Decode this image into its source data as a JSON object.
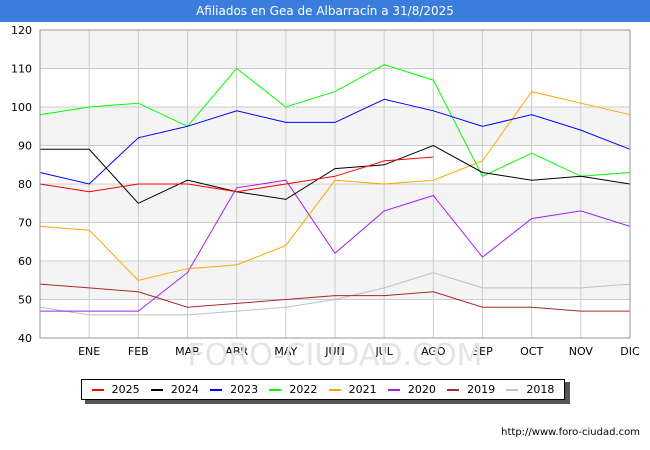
{
  "title": "Afiliados en Gea de Albarracín a 31/8/2025",
  "source": "http://www.foro-ciudad.com",
  "watermark": "FORO-CIUDAD.COM",
  "colors": {
    "title_bar": "#3b7ddd",
    "grid": "#cccccc",
    "band": "#f4f4f4"
  },
  "chart_data": {
    "type": "line",
    "title": "Afiliados en Gea de Albarracín a 31/8/2025",
    "x": [
      "",
      "ENE",
      "FEB",
      "MAR",
      "ABR",
      "MAY",
      "JUN",
      "JUL",
      "AGO",
      "SEP",
      "OCT",
      "NOV",
      "DIC"
    ],
    "ylim": [
      40,
      120
    ],
    "yticks": [
      40,
      50,
      60,
      70,
      80,
      90,
      100,
      110,
      120
    ],
    "grid": true,
    "legend_position": "bottom",
    "series": [
      {
        "name": "2025",
        "color": "#ff0000",
        "values": [
          80,
          78,
          80,
          80,
          78,
          80,
          82,
          86,
          87,
          null,
          null,
          null,
          null
        ]
      },
      {
        "name": "2024",
        "color": "#000000",
        "values": [
          89,
          89,
          75,
          81,
          78,
          76,
          84,
          85,
          90,
          83,
          81,
          82,
          80
        ]
      },
      {
        "name": "2023",
        "color": "#0000ff",
        "values": [
          83,
          80,
          92,
          95,
          99,
          96,
          96,
          102,
          99,
          95,
          98,
          94,
          89
        ]
      },
      {
        "name": "2022",
        "color": "#00ff00",
        "values": [
          98,
          100,
          101,
          95,
          110,
          100,
          104,
          111,
          107,
          82,
          88,
          82,
          83
        ]
      },
      {
        "name": "2021",
        "color": "#ffa500",
        "values": [
          69,
          68,
          55,
          58,
          59,
          64,
          81,
          80,
          81,
          86,
          104,
          101,
          98
        ]
      },
      {
        "name": "2020",
        "color": "#a020f0",
        "values": [
          47,
          47,
          47,
          57,
          79,
          81,
          62,
          73,
          77,
          61,
          71,
          73,
          69
        ]
      },
      {
        "name": "2019",
        "color": "#a52a2a",
        "values": [
          54,
          53,
          52,
          48,
          49,
          50,
          51,
          51,
          52,
          48,
          48,
          47,
          47
        ]
      },
      {
        "name": "2018",
        "color": "#c0c0c0",
        "values": [
          48,
          46,
          46,
          46,
          47,
          48,
          50,
          53,
          57,
          53,
          53,
          53,
          54
        ]
      }
    ]
  }
}
